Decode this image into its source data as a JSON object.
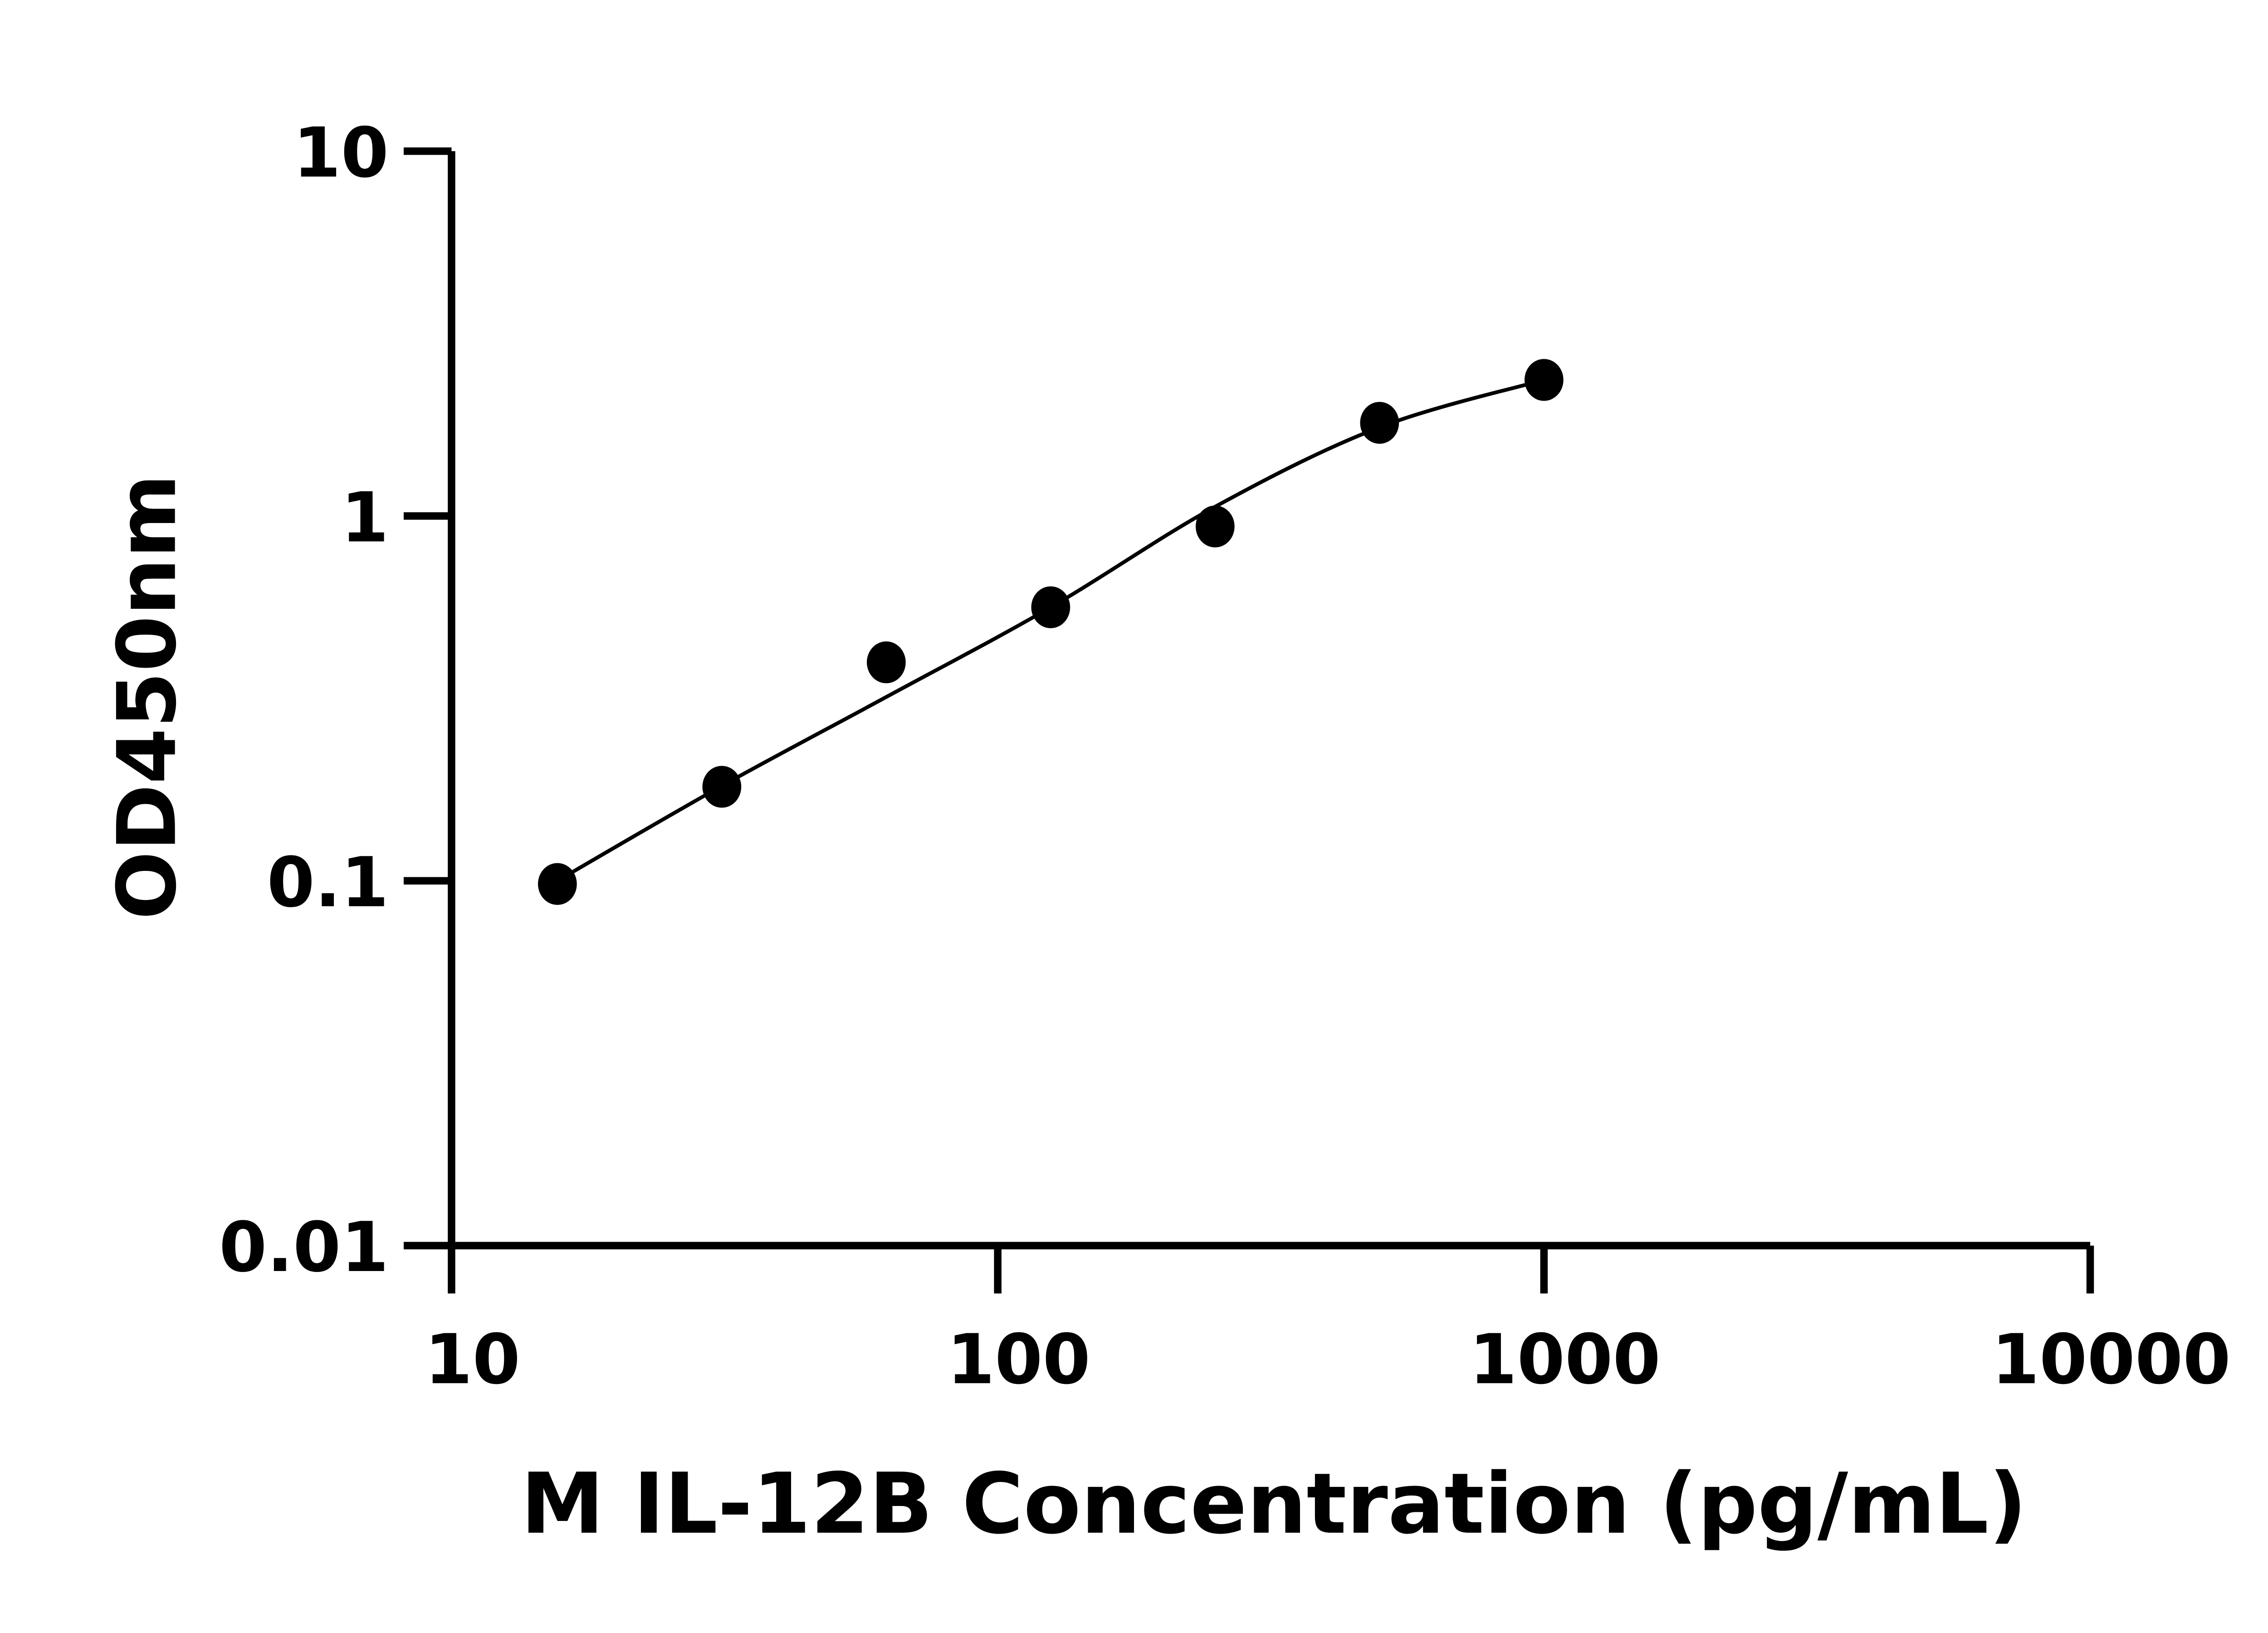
{
  "chart_data": {
    "type": "scatter",
    "title": "",
    "xlabel": "M IL-12B Concentration (pg/mL)",
    "ylabel": "OD450nm",
    "x_scale": "log",
    "y_scale": "log",
    "xlim": [
      10,
      10000
    ],
    "ylim": [
      0.01,
      10
    ],
    "x_ticks": [
      "10",
      "100",
      "1000",
      "10000"
    ],
    "y_ticks": [
      "0.01",
      "0.1",
      "1",
      "10"
    ],
    "grid": false,
    "marker_color": "#000000",
    "points": [
      {
        "x": 15.625,
        "y": 0.098
      },
      {
        "x": 31.25,
        "y": 0.181
      },
      {
        "x": 62.5,
        "y": 0.397
      },
      {
        "x": 125,
        "y": 0.562
      },
      {
        "x": 250,
        "y": 0.936
      },
      {
        "x": 500,
        "y": 1.8
      },
      {
        "x": 1000,
        "y": 2.36
      }
    ],
    "fit_curve": [
      {
        "x": 15.625,
        "y": 0.1
      },
      {
        "x": 31.25,
        "y": 0.182
      },
      {
        "x": 62.5,
        "y": 0.319
      },
      {
        "x": 125,
        "y": 0.562
      },
      {
        "x": 250,
        "y": 1.06
      },
      {
        "x": 500,
        "y": 1.75
      },
      {
        "x": 1000,
        "y": 2.36
      }
    ]
  }
}
